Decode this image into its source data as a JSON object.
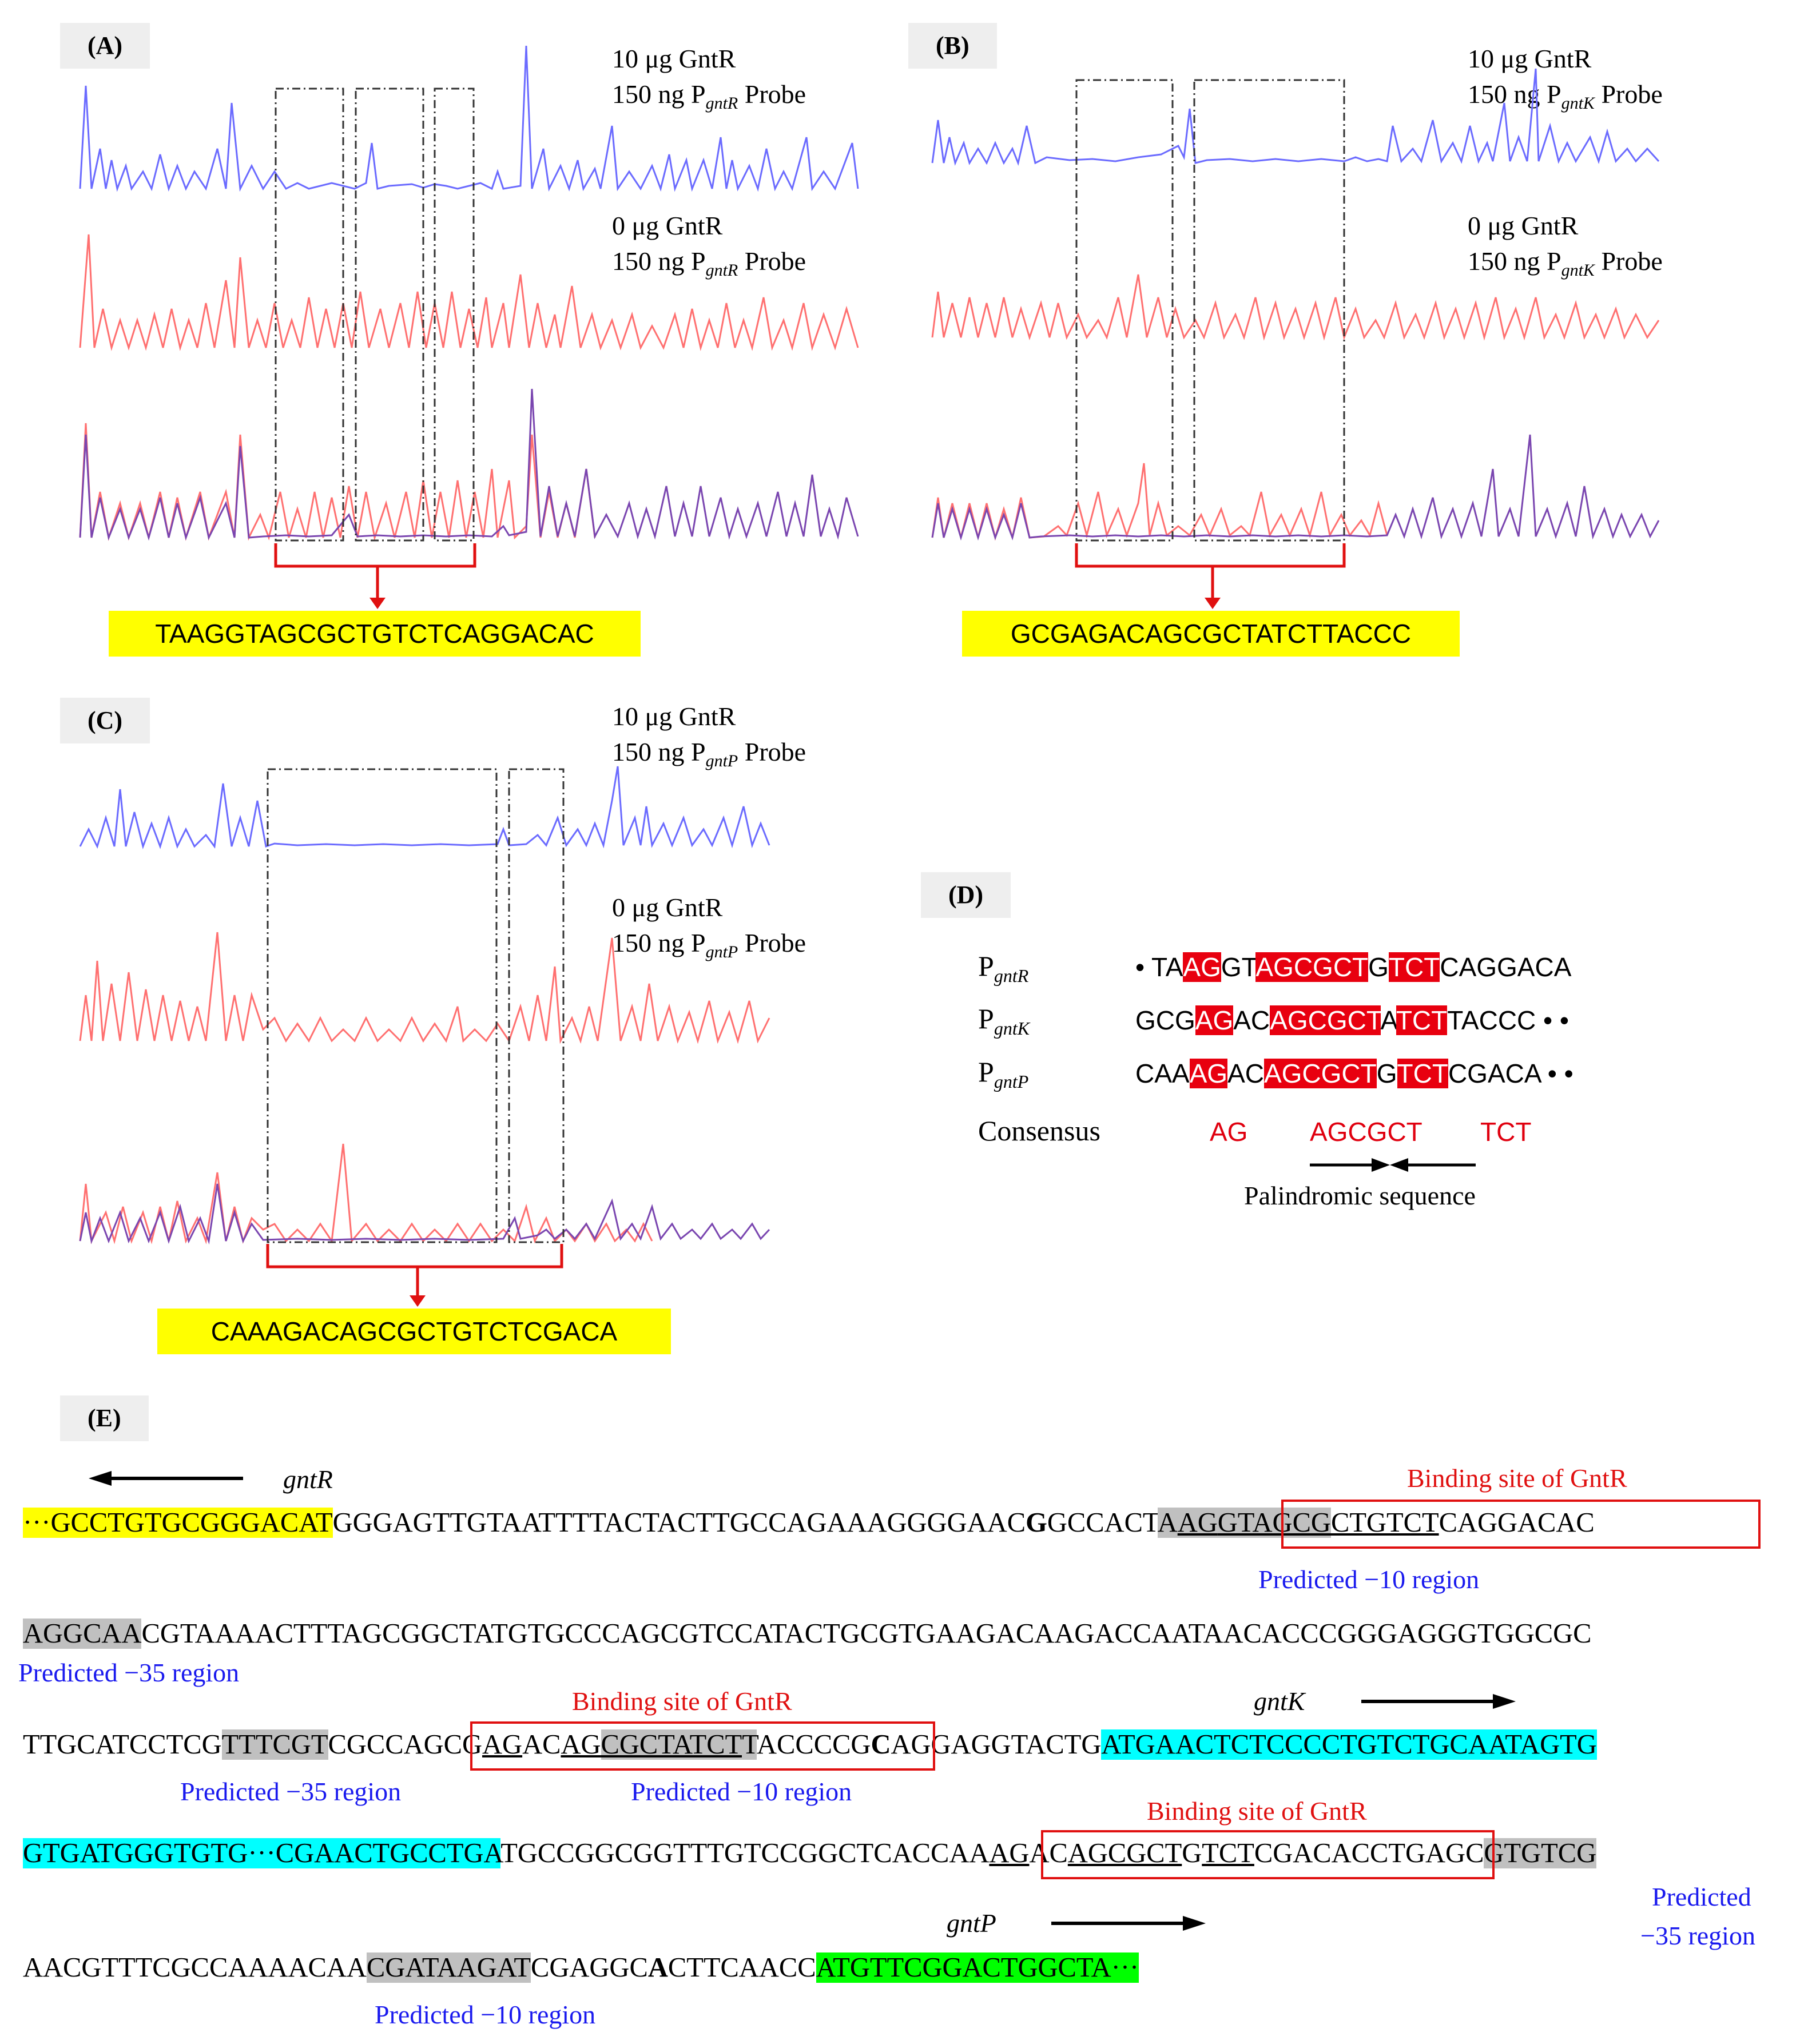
{
  "panels": {
    "A": {
      "label": "(A)",
      "conditions": [
        {
          "line1": "10 μg GntR",
          "line2_prefix": "150 ng P",
          "line2_sub": "gntR",
          "line2_suffix": " Probe"
        },
        {
          "line1": "0 μg GntR",
          "line2_prefix": "150 ng P",
          "line2_sub": "gntR",
          "line2_suffix": " Probe"
        }
      ],
      "protected_sequence": "TAAGGTAGCGCTGTCTCAGGACAC"
    },
    "B": {
      "label": "(B)",
      "conditions": [
        {
          "line1": "10 μg GntR",
          "line2_prefix": "150 ng P",
          "line2_sub": "gntK",
          "line2_suffix": " Probe"
        },
        {
          "line1": "0 μg GntR",
          "line2_prefix": "150 ng P",
          "line2_sub": "gntK",
          "line2_suffix": " Probe"
        }
      ],
      "protected_sequence": "GCGAGACAGCGCTATCTTACCC"
    },
    "C": {
      "label": "(C)",
      "conditions": [
        {
          "line1": "10 μg GntR",
          "line2_prefix": "150 ng P",
          "line2_sub": "gntP",
          "line2_suffix": " Probe"
        },
        {
          "line1": "0 μg GntR",
          "line2_prefix": "150 ng P",
          "line2_sub": "gntP",
          "line2_suffix": " Probe"
        }
      ],
      "protected_sequence": "CAAAGACAGCGCTGTCTCGACA"
    },
    "D": {
      "label": "(D)",
      "rows": [
        {
          "name_main": "P",
          "name_sub": "gntR",
          "segments": [
            [
              "• TA",
              false
            ],
            [
              "AG",
              true
            ],
            [
              "GT",
              false
            ],
            [
              "AGCGCT",
              true
            ],
            [
              "G",
              false
            ],
            [
              "TCT",
              true
            ],
            [
              "CAGGACA",
              false
            ]
          ]
        },
        {
          "name_main": "P",
          "name_sub": "gntK",
          "segments": [
            [
              "GCG",
              false
            ],
            [
              "AG",
              true
            ],
            [
              "AC",
              false
            ],
            [
              "AGCGCT",
              true
            ],
            [
              "A",
              false
            ],
            [
              "TCT",
              true
            ],
            [
              "TACCC • •",
              false
            ]
          ]
        },
        {
          "name_main": "P",
          "name_sub": "gntP",
          "segments": [
            [
              "CAA",
              false
            ],
            [
              "AG",
              true
            ],
            [
              "AC",
              false
            ],
            [
              "AGCGCT",
              true
            ],
            [
              "G",
              false
            ],
            [
              "TCT",
              true
            ],
            [
              "CGACA • •",
              false
            ]
          ]
        }
      ],
      "consensus_label": "Consensus",
      "consensus": [
        "AG",
        "AGCGCT",
        "TCT"
      ],
      "palindrome_label": "Palindromic sequence"
    },
    "E": {
      "label": "(E)",
      "genes": {
        "gntR": "gntR",
        "gntK": "gntK",
        "gntP": "gntP"
      },
      "binding_label": "Binding  site of GntR",
      "binding_label_3": "Binding  site of  GntR",
      "m10": "Predicted −10 region",
      "m35": "Predicted −35 region",
      "m35_a": "Predicted",
      "m35_b": "−35 region",
      "line1": {
        "s1": "···GCCTGTGCGGGACAT",
        "s2": "GGGAGTTGTAATTTTACTACTTGCCAGAAAGGGGAAC",
        "s3": "G",
        "s4": "GCCACT",
        "s5": "A",
        "s6": "AG",
        "s7": "GTAGCG",
        "s8": "CTGTCT",
        "s9": "CAGGACAC"
      },
      "line2": {
        "s1": "AGGCAA",
        "s2": "CGTAAAACTTTAGCGGCTATGTGCCCAGCGTCCATACTGCGTGAAGACAAGACCAATAACACCCGGGAGGGTGGCGC"
      },
      "line3": {
        "s1": "TTGCATCCTCG",
        "s2": "TTTCGT",
        "s3": "CGCCA",
        "s4": "GCG",
        "s5": "AG",
        "s6": "AC",
        "s7": "AG",
        "s8": "CGCTATCT",
        "s9": "T",
        "s10": "ACCC",
        "s11": "CG",
        "s12": "C",
        "s13": "AGGAGGTACTG",
        "s14": "ATGAACTCTCCCCTGTCTGCAATAGTG"
      },
      "line4": {
        "s1": "GTGATGGGTGTG···CGAACTGCCTGA",
        "s2": "TGCCGGCGGTTTGTCCGGCTCAC",
        "s3": "CAA",
        "s4": "AG",
        "s5": "AC",
        "s6": "AGCGCT",
        "s7": "G",
        "s8": "TCT",
        "s9": "CGAC",
        "s10": "ACCTGAGC",
        "s11": "GTGTCG"
      },
      "line5": {
        "s1": "AACGTTTCGCCAAAACAA",
        "s2": "CGATAAGAT",
        "s3": "CGAGGC",
        "s4": "A",
        "s5": "CTTCAACC",
        "s6": "ATGTTCGGACTGGCTA···"
      }
    }
  },
  "colors": {
    "blue_trace": "#6b6bff",
    "red_trace": "#ff7070",
    "overlay_trace": "#7a46b0",
    "highlight_red": "#e8000f",
    "yellow": "#ffff00"
  }
}
